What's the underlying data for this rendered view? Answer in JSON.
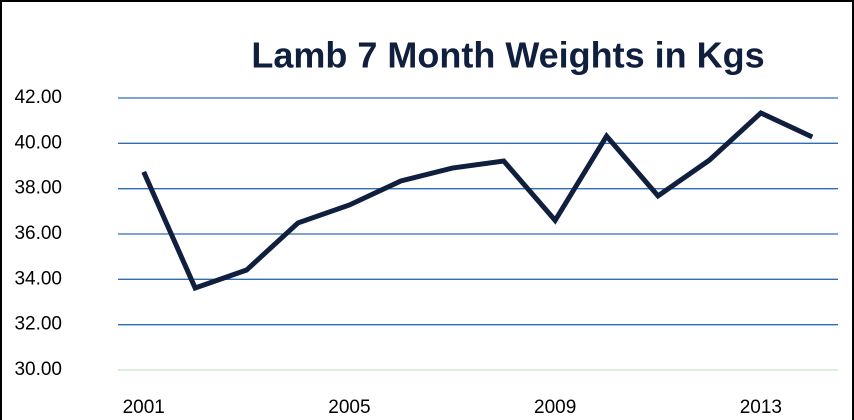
{
  "chart_data": {
    "type": "line",
    "title": "Lamb 7 Month Weights in Kgs",
    "x": [
      2001,
      2002,
      2003,
      2004,
      2005,
      2006,
      2007,
      2008,
      2009,
      2010,
      2011,
      2012,
      2013,
      2014
    ],
    "series": [
      {
        "name": "Lamb 7 Month Weights",
        "color": "#0f1f3d",
        "values": [
          38.74,
          33.62,
          34.41,
          36.49,
          37.28,
          38.34,
          38.91,
          39.22,
          36.6,
          40.32,
          37.68,
          39.26,
          41.34,
          40.28
        ]
      }
    ],
    "xlim": [
      2000.5,
      2014.5
    ],
    "xticks": [
      2001,
      2005,
      2009,
      2013
    ],
    "ylim": [
      30,
      42
    ],
    "yticks": [
      {
        "value": 30,
        "label": "30.00"
      },
      {
        "value": 32,
        "label": "32.00"
      },
      {
        "value": 34,
        "label": "34.00"
      },
      {
        "value": 36,
        "label": "36.00"
      },
      {
        "value": 38,
        "label": "38.00"
      },
      {
        "value": 40,
        "label": "40.00"
      },
      {
        "value": 42,
        "label": "42.00"
      }
    ],
    "grid": true
  }
}
